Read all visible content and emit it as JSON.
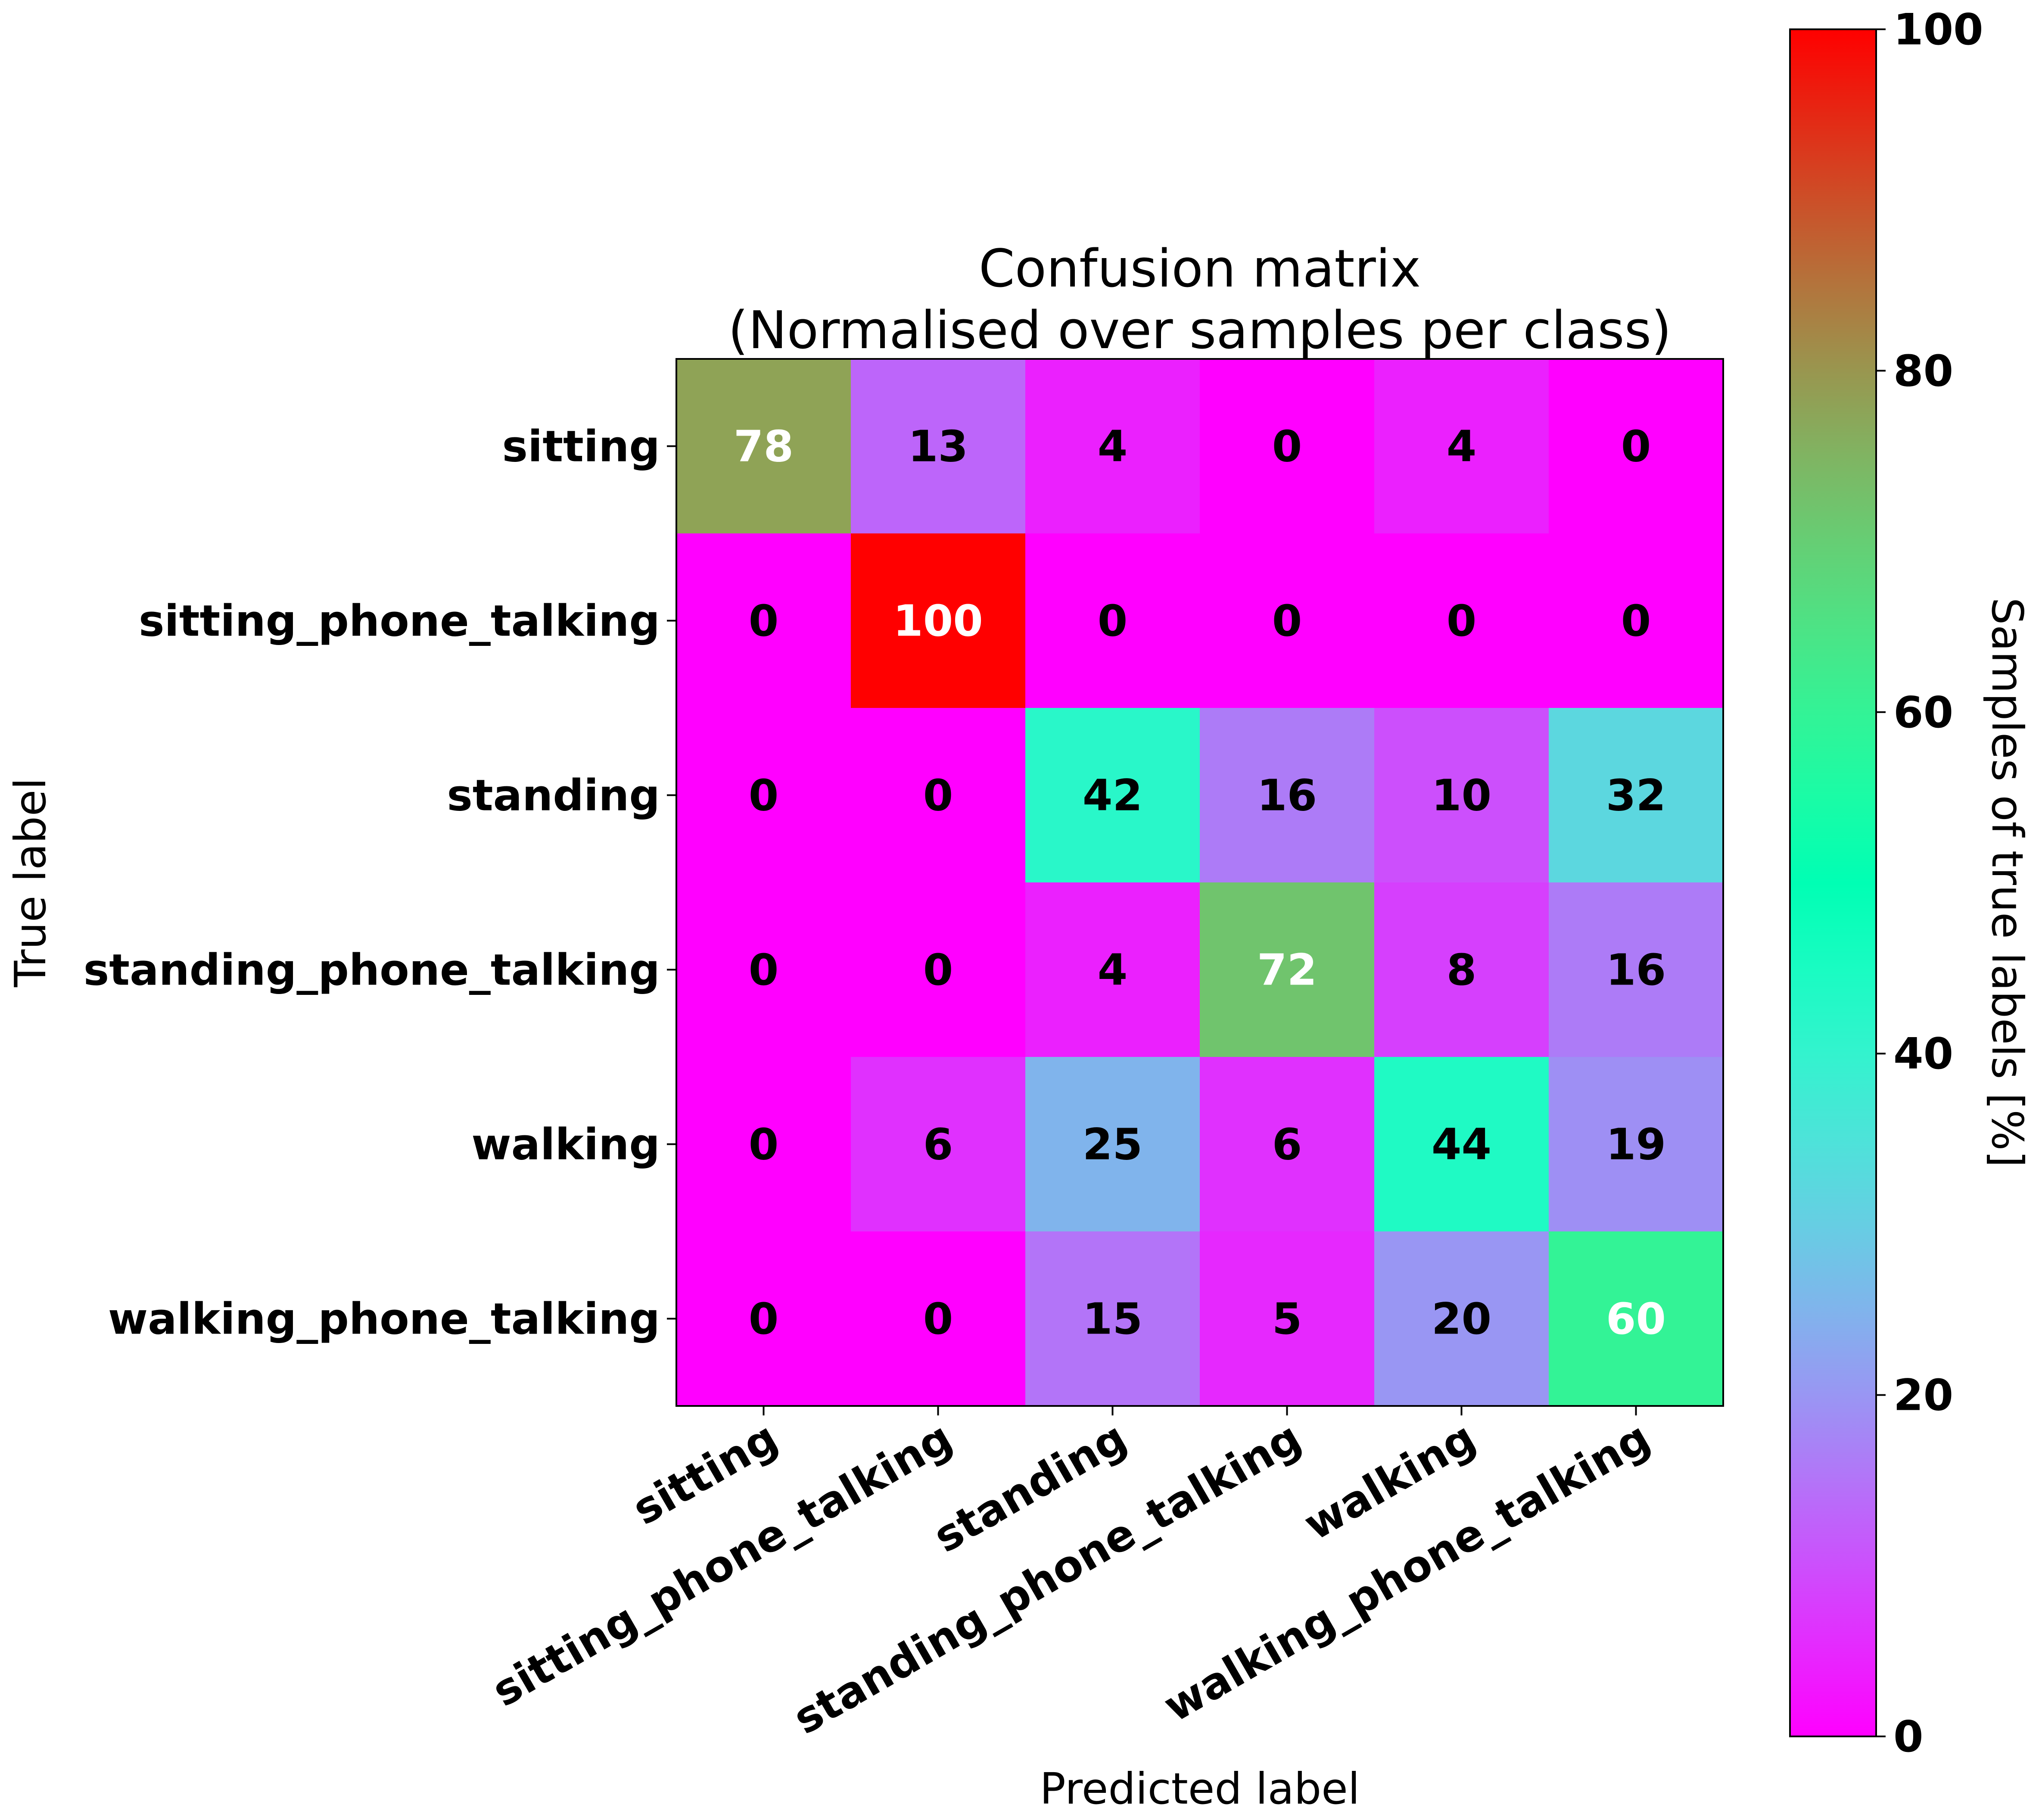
{
  "chart_data": {
    "type": "heatmap",
    "title": [
      "Confusion matrix",
      "(Normalised over samples per class)"
    ],
    "xlabel": "Predicted label",
    "ylabel": "True label",
    "x_categories": [
      "sitting",
      "sitting_phone_talking",
      "standing",
      "standing_phone_talking",
      "walking",
      "walking_phone_talking"
    ],
    "y_categories": [
      "sitting",
      "sitting_phone_talking",
      "standing",
      "standing_phone_talking",
      "walking",
      "walking_phone_talking"
    ],
    "values": [
      [
        78,
        13,
        4,
        0,
        4,
        0
      ],
      [
        0,
        100,
        0,
        0,
        0,
        0
      ],
      [
        0,
        0,
        42,
        16,
        10,
        32
      ],
      [
        0,
        0,
        4,
        72,
        8,
        16
      ],
      [
        0,
        6,
        25,
        6,
        44,
        19
      ],
      [
        0,
        0,
        15,
        5,
        20,
        60
      ]
    ],
    "colormap": "rainbow",
    "colorbar": {
      "label": "Samples of true labels [%]",
      "range": [
        0,
        100
      ],
      "ticks": [
        0,
        20,
        40,
        60,
        80,
        100
      ]
    }
  }
}
